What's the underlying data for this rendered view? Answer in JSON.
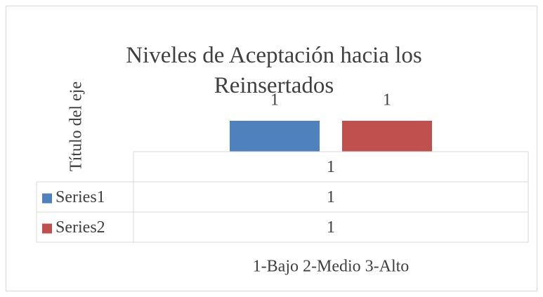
{
  "chart_data": {
    "type": "bar",
    "title": "Niveles de Aceptación hacia los Reinsertados",
    "y_axis_label": "Título del eje",
    "x_axis_label": "1-Bajo 2-Medio 3-Alto",
    "categories": [
      "1"
    ],
    "series": [
      {
        "name": "Series1",
        "color": "#4f81bd",
        "values": [
          1
        ]
      },
      {
        "name": "Series2",
        "color": "#c0504d",
        "values": [
          1
        ]
      }
    ],
    "ylim": [
      0,
      1
    ],
    "data_table": true
  }
}
